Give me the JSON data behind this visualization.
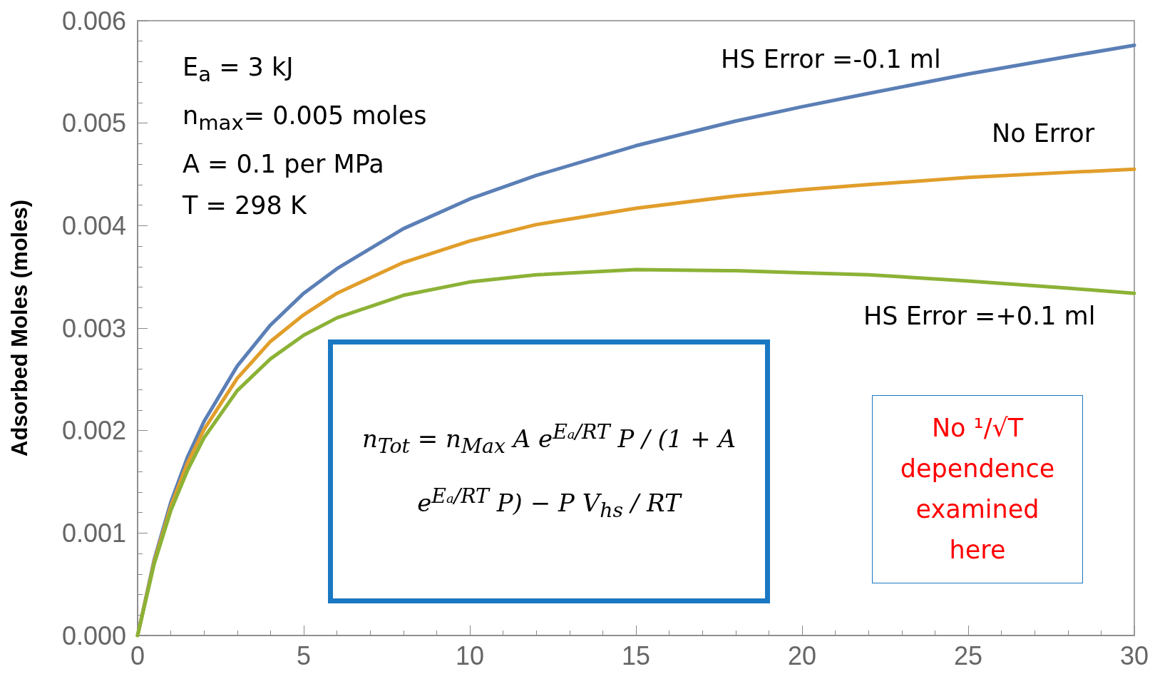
{
  "chart_data": {
    "type": "line",
    "ylabel": "Adsorbed Moles (moles)",
    "x": [
      0,
      0.5,
      1,
      1.5,
      2,
      3,
      4,
      5,
      6,
      8,
      10,
      12,
      15,
      18,
      20,
      22,
      25,
      28,
      30
    ],
    "series": [
      {
        "name": "HS Error =-0.1 ml",
        "color": "#5b7fb6",
        "values": [
          0,
          0.00074,
          0.0013,
          0.00174,
          0.00209,
          0.00263,
          0.00303,
          0.00334,
          0.00358,
          0.00397,
          0.00426,
          0.00449,
          0.00478,
          0.00502,
          0.00516,
          0.00529,
          0.00548,
          0.00565,
          0.00576
        ]
      },
      {
        "name": "No Error",
        "color": "#e19e2b",
        "values": [
          0,
          0.00072,
          0.00126,
          0.00168,
          0.00201,
          0.00251,
          0.00287,
          0.00313,
          0.00334,
          0.00364,
          0.00385,
          0.00401,
          0.00417,
          0.00429,
          0.00435,
          0.0044,
          0.00447,
          0.00452,
          0.00455
        ]
      },
      {
        "name": "HS Error =+0.1 ml",
        "color": "#8cb236",
        "values": [
          0,
          0.0007,
          0.00122,
          0.00161,
          0.00193,
          0.00239,
          0.0027,
          0.00293,
          0.0031,
          0.00332,
          0.00345,
          0.00352,
          0.00357,
          0.00356,
          0.00354,
          0.00352,
          0.00346,
          0.00339,
          0.00334
        ]
      }
    ],
    "xlim": [
      0,
      30
    ],
    "xticks": [
      0,
      5,
      10,
      15,
      20,
      25,
      30
    ],
    "ylim": [
      0,
      0.006
    ],
    "yticks": [
      {
        "value": 0,
        "label": "0.000"
      },
      {
        "value": 0.001,
        "label": "0.001"
      },
      {
        "value": 0.002,
        "label": "0.002"
      },
      {
        "value": 0.003,
        "label": "0.003"
      },
      {
        "value": 0.004,
        "label": "0.004"
      },
      {
        "value": 0.005,
        "label": "0.005"
      },
      {
        "value": 0.006,
        "label": "0.006"
      }
    ],
    "annotations": [
      "E$_{a}$ = 3 kJ\nn$_{max}$= 0.005 moles\nA = 0.1 per MPa\nT = 298 K",
      "n$_{Tot}$ = n$_{Max}$ A e$^{Eₐ/RT}$ P / (1 + A e$^{Eₐ/RT}$ P) − P V$_{hs}$ / RT",
      "No ¹/√T\ndependence\nexamined\nhere"
    ],
    "grid": false,
    "legend": false,
    "marker": "none",
    "line_style": "solid"
  }
}
